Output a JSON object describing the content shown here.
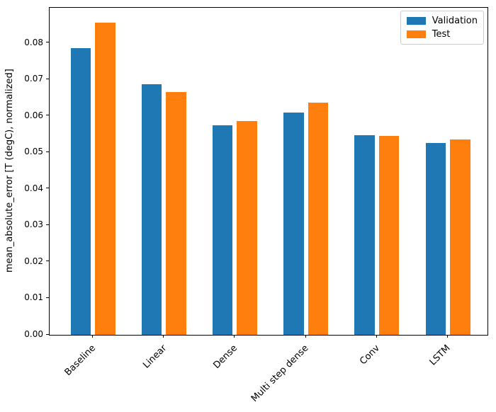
{
  "window": {
    "background": "#ffffff"
  },
  "chart_data": {
    "type": "bar",
    "title": "",
    "xlabel": "",
    "ylabel": "mean_absolute_error [T (degC), normalized]",
    "categories": [
      "Baseline",
      "Linear",
      "Dense",
      "Multi step dense",
      "Conv",
      "LSTM"
    ],
    "series": [
      {
        "name": "Validation",
        "color": "#1f77b4",
        "values": [
          0.0787,
          0.0688,
          0.0575,
          0.0609,
          0.0548,
          0.0527
        ]
      },
      {
        "name": "Test",
        "color": "#ff7f0e",
        "values": [
          0.0856,
          0.0666,
          0.0586,
          0.0636,
          0.0546,
          0.0536
        ]
      }
    ],
    "ylim": [
      0.0,
      0.0897
    ],
    "yticks": [
      0.0,
      0.01,
      0.02,
      0.03,
      0.04,
      0.05,
      0.06,
      0.07,
      0.08
    ],
    "ytick_labels": [
      "0.00",
      "0.01",
      "0.02",
      "0.03",
      "0.04",
      "0.05",
      "0.06",
      "0.07",
      "0.08"
    ],
    "xtick_rotation_deg": 45,
    "grid": false,
    "legend_position": "upper right",
    "axis_color": "#000000",
    "text_color": "#000000"
  }
}
